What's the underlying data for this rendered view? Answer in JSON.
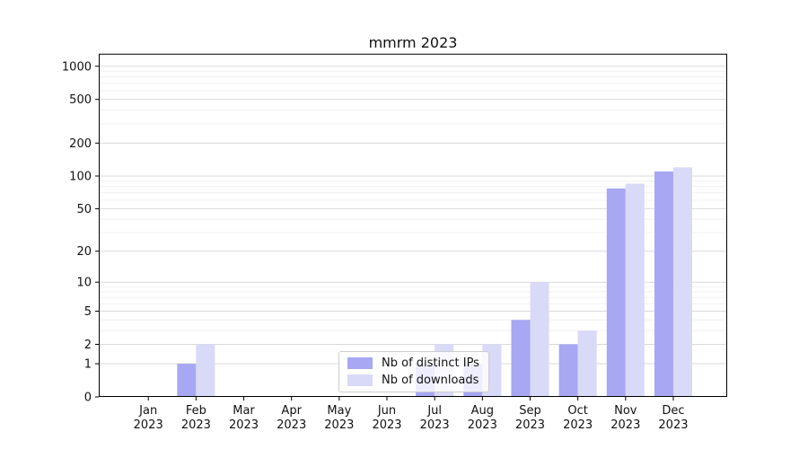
{
  "chart_data": {
    "type": "bar",
    "title": "mmrm 2023",
    "categories": [
      "Jan",
      "Feb",
      "Mar",
      "Apr",
      "May",
      "Jun",
      "Jul",
      "Aug",
      "Sep",
      "Oct",
      "Nov",
      "Dec"
    ],
    "year_label": "2023",
    "series": [
      {
        "name": "Nb of distinct IPs",
        "color": "#a7a7f3",
        "values": [
          0,
          1,
          0,
          0,
          0,
          0,
          1,
          1,
          4,
          2,
          77,
          110
        ]
      },
      {
        "name": "Nb of downloads",
        "color": "#d9d9f8",
        "values": [
          0,
          2,
          0,
          0,
          0,
          0,
          2,
          2,
          10,
          3,
          85,
          120
        ]
      }
    ],
    "xlabel": "",
    "ylabel": "",
    "y_scale": "log1p",
    "ylim": [
      0,
      1300
    ],
    "yticks": [
      0,
      1,
      2,
      5,
      10,
      20,
      50,
      100,
      200,
      500,
      1000
    ],
    "ytick_labels": [
      "0",
      "1",
      "2",
      "5",
      "10",
      "20",
      "50",
      "100",
      "200",
      "500",
      "1000"
    ],
    "minor_gridlines": [
      3,
      4,
      6,
      7,
      8,
      9,
      30,
      40,
      60,
      70,
      80,
      90,
      300,
      400,
      600,
      700,
      800,
      900
    ],
    "grid": true,
    "legend_position": "lower center",
    "colors": {
      "major_grid": "#d9d9d9",
      "minor_grid": "#f0f0f0",
      "axis_frame": "#000000",
      "text": "#111111"
    }
  }
}
